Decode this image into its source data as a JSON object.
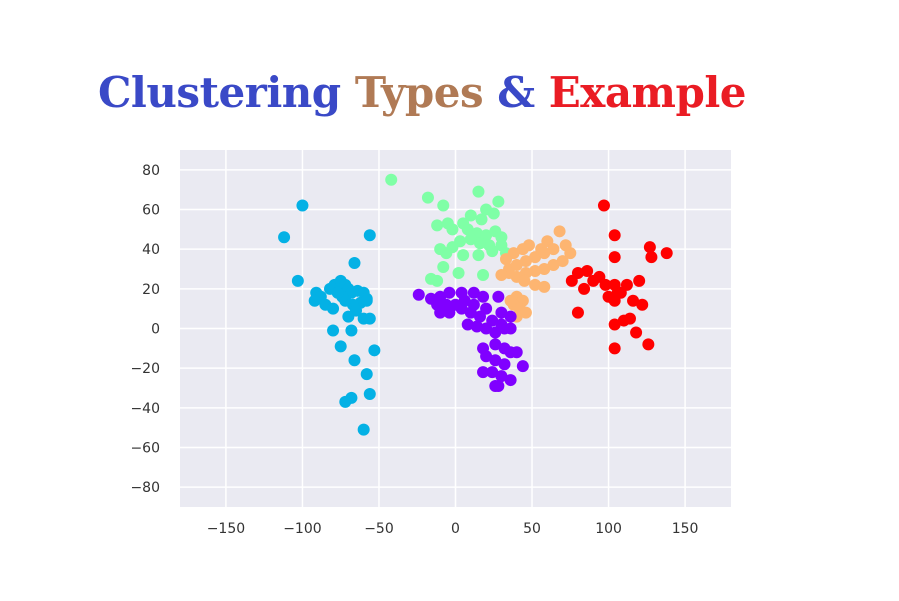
{
  "title": {
    "part1": "Clustering",
    "part2": "Types",
    "part3": "&",
    "part4": "Example",
    "colors": {
      "part1": "#3a49c7",
      "part2": "#b07a55",
      "part3": "#3a49c7",
      "part4": "#ea1c24"
    }
  },
  "chart_data": {
    "type": "scatter",
    "title": "",
    "xlabel": "",
    "ylabel": "",
    "xlim": [
      -180,
      180
    ],
    "ylim": [
      -90,
      90
    ],
    "xticks": [
      -150,
      -100,
      -50,
      0,
      50,
      100,
      150
    ],
    "yticks": [
      80,
      60,
      40,
      20,
      0,
      -20,
      -40,
      -60,
      -80
    ],
    "grid": true,
    "background": "#eaeaf2",
    "series": [
      {
        "color": "#04b1e5",
        "points": [
          [
            -100,
            62
          ],
          [
            -112,
            46
          ],
          [
            -56,
            47
          ],
          [
            -103,
            24
          ],
          [
            -91,
            18
          ],
          [
            -88,
            16
          ],
          [
            -92,
            14
          ],
          [
            -85,
            12
          ],
          [
            -80,
            10
          ],
          [
            -82,
            20
          ],
          [
            -79,
            22
          ],
          [
            -75,
            24
          ],
          [
            -72,
            22
          ],
          [
            -70,
            20
          ],
          [
            -68,
            18
          ],
          [
            -64,
            19
          ],
          [
            -60,
            18
          ],
          [
            -58,
            15
          ],
          [
            -62,
            13
          ],
          [
            -67,
            12
          ],
          [
            -72,
            14
          ],
          [
            -74,
            16
          ],
          [
            -77,
            18
          ],
          [
            -66,
            33
          ],
          [
            -65,
            9
          ],
          [
            -70,
            6
          ],
          [
            -60,
            5
          ],
          [
            -56,
            5
          ],
          [
            -58,
            14
          ],
          [
            -80,
            -1
          ],
          [
            -68,
            -1
          ],
          [
            -75,
            -9
          ],
          [
            -53,
            -11
          ],
          [
            -66,
            -16
          ],
          [
            -58,
            -23
          ],
          [
            -56,
            -33
          ],
          [
            -68,
            -35
          ],
          [
            -72,
            -37
          ],
          [
            -60,
            -51
          ]
        ]
      },
      {
        "color": "#7fffa6",
        "points": [
          [
            -42,
            75
          ],
          [
            -18,
            66
          ],
          [
            -8,
            62
          ],
          [
            15,
            69
          ],
          [
            20,
            60
          ],
          [
            28,
            64
          ],
          [
            25,
            58
          ],
          [
            17,
            55
          ],
          [
            10,
            57
          ],
          [
            5,
            53
          ],
          [
            -5,
            53
          ],
          [
            -12,
            52
          ],
          [
            -2,
            50
          ],
          [
            8,
            50
          ],
          [
            14,
            48
          ],
          [
            20,
            47
          ],
          [
            26,
            49
          ],
          [
            30,
            46
          ],
          [
            22,
            42
          ],
          [
            16,
            43
          ],
          [
            10,
            45
          ],
          [
            3,
            44
          ],
          [
            -2,
            41
          ],
          [
            -10,
            40
          ],
          [
            -6,
            38
          ],
          [
            5,
            37
          ],
          [
            15,
            37
          ],
          [
            24,
            39
          ],
          [
            30,
            42
          ],
          [
            33,
            38
          ],
          [
            -8,
            31
          ],
          [
            2,
            28
          ],
          [
            18,
            27
          ],
          [
            -12,
            24
          ],
          [
            -16,
            25
          ]
        ]
      },
      {
        "color": "#fdb571",
        "points": [
          [
            68,
            49
          ],
          [
            60,
            44
          ],
          [
            56,
            40
          ],
          [
            48,
            42
          ],
          [
            44,
            40
          ],
          [
            38,
            38
          ],
          [
            33,
            35
          ],
          [
            35,
            30
          ],
          [
            40,
            32
          ],
          [
            46,
            34
          ],
          [
            52,
            36
          ],
          [
            58,
            38
          ],
          [
            64,
            40
          ],
          [
            72,
            42
          ],
          [
            75,
            38
          ],
          [
            70,
            34
          ],
          [
            64,
            32
          ],
          [
            58,
            30
          ],
          [
            52,
            29
          ],
          [
            46,
            28
          ],
          [
            40,
            26
          ],
          [
            35,
            28
          ],
          [
            30,
            27
          ],
          [
            45,
            24
          ],
          [
            52,
            22
          ],
          [
            58,
            21
          ],
          [
            40,
            16
          ],
          [
            44,
            14
          ],
          [
            38,
            12
          ],
          [
            42,
            10
          ],
          [
            46,
            8
          ],
          [
            40,
            6
          ],
          [
            36,
            14
          ]
        ]
      },
      {
        "color": "#8000ff",
        "points": [
          [
            -24,
            17
          ],
          [
            -16,
            15
          ],
          [
            -10,
            16
          ],
          [
            -4,
            18
          ],
          [
            4,
            18
          ],
          [
            12,
            18
          ],
          [
            18,
            16
          ],
          [
            28,
            16
          ],
          [
            -12,
            12
          ],
          [
            -6,
            12
          ],
          [
            0,
            12
          ],
          [
            6,
            14
          ],
          [
            12,
            12
          ],
          [
            20,
            10
          ],
          [
            30,
            8
          ],
          [
            36,
            6
          ],
          [
            -10,
            8
          ],
          [
            -4,
            8
          ],
          [
            4,
            10
          ],
          [
            10,
            8
          ],
          [
            16,
            6
          ],
          [
            24,
            4
          ],
          [
            30,
            2
          ],
          [
            8,
            2
          ],
          [
            14,
            1
          ],
          [
            20,
            0
          ],
          [
            26,
            -2
          ],
          [
            32,
            0
          ],
          [
            36,
            0
          ],
          [
            18,
            -10
          ],
          [
            26,
            -8
          ],
          [
            32,
            -10
          ],
          [
            36,
            -12
          ],
          [
            40,
            -12
          ],
          [
            20,
            -14
          ],
          [
            26,
            -16
          ],
          [
            32,
            -18
          ],
          [
            44,
            -19
          ],
          [
            18,
            -22
          ],
          [
            24,
            -22
          ],
          [
            30,
            -24
          ],
          [
            36,
            -26
          ],
          [
            26,
            -29
          ],
          [
            28,
            -29
          ]
        ]
      },
      {
        "color": "#ff0000",
        "points": [
          [
            97,
            62
          ],
          [
            104,
            47
          ],
          [
            127,
            41
          ],
          [
            138,
            38
          ],
          [
            128,
            36
          ],
          [
            104,
            36
          ],
          [
            86,
            29
          ],
          [
            80,
            28
          ],
          [
            94,
            26
          ],
          [
            90,
            24
          ],
          [
            76,
            24
          ],
          [
            98,
            22
          ],
          [
            104,
            22
          ],
          [
            108,
            18
          ],
          [
            112,
            22
          ],
          [
            120,
            24
          ],
          [
            84,
            20
          ],
          [
            100,
            16
          ],
          [
            104,
            14
          ],
          [
            106,
            18
          ],
          [
            116,
            14
          ],
          [
            122,
            12
          ],
          [
            80,
            8
          ],
          [
            104,
            2
          ],
          [
            110,
            4
          ],
          [
            114,
            5
          ],
          [
            118,
            -2
          ],
          [
            126,
            -8
          ],
          [
            104,
            -10
          ]
        ]
      }
    ]
  }
}
